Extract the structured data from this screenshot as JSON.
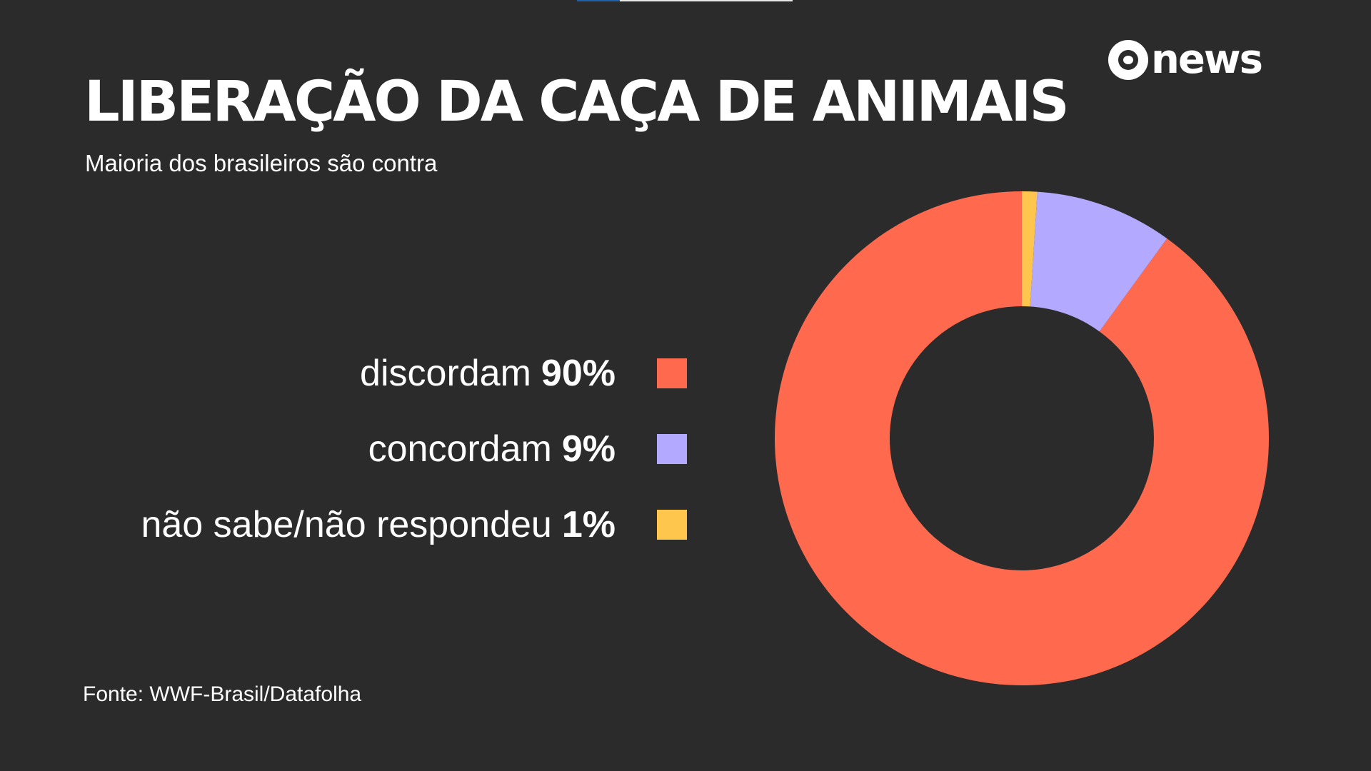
{
  "brand": {
    "logo_text": "news"
  },
  "colors": {
    "background": "#2b2b2b",
    "discordam": "#ff6a4f",
    "concordam": "#b3a9ff",
    "nao_sabe": "#ffc64d"
  },
  "chart_data": {
    "type": "pie",
    "title": "LIBERAÇÃO DA CAÇA DE ANIMAIS",
    "subtitle": "Maioria dos brasileiros são contra",
    "legend_position": "left",
    "categories": [
      "discordam",
      "concordam",
      "não sabe/não respondeu"
    ],
    "values": [
      90,
      9,
      1
    ],
    "labels": [
      "90%",
      "9%",
      "1%"
    ],
    "colors": [
      "#ff6a4f",
      "#b3a9ff",
      "#ffc64d"
    ],
    "source": "Fonte: WWF-Brasil/Datafolha"
  }
}
